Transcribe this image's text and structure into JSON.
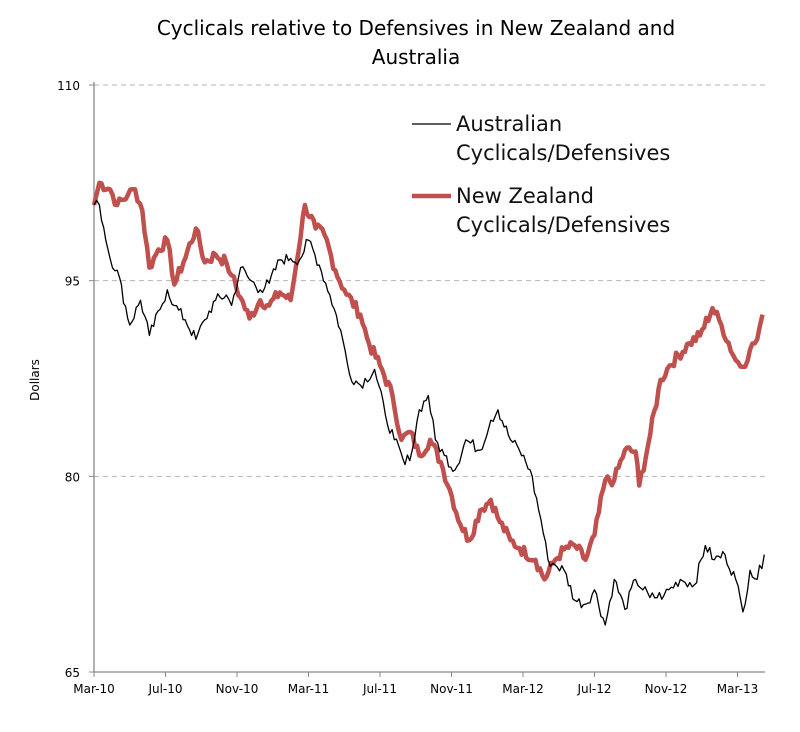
{
  "chart_data": {
    "type": "line",
    "title_lines": [
      "Cyclicals relative to  Defensives in New Zealand and",
      "Australia"
    ],
    "xlabel": "",
    "ylabel": "Dollars",
    "ylim": [
      65,
      110
    ],
    "yticks": [
      65,
      80,
      95,
      110
    ],
    "x_unit": "months since Mar-10",
    "xlim": [
      0,
      37.6
    ],
    "xticks": [
      {
        "label": "Mar-10",
        "x": 0
      },
      {
        "label": "Jul-10",
        "x": 4
      },
      {
        "label": "Nov-10",
        "x": 8
      },
      {
        "label": "Mar-11",
        "x": 12
      },
      {
        "label": "Jul-11",
        "x": 16
      },
      {
        "label": "Nov-11",
        "x": 20
      },
      {
        "label": "Mar-12",
        "x": 24
      },
      {
        "label": "Jul-12",
        "x": 28
      },
      {
        "label": "Nov-12",
        "x": 32
      },
      {
        "label": "Mar-13",
        "x": 36
      }
    ],
    "grid": "horizontal dashed",
    "legend_position": "top-right",
    "series": [
      {
        "name": "Australian Cyclicals/Defensives",
        "legend_lines": [
          "Australian",
          "Cyclicals/Defensives"
        ],
        "color": "#000000",
        "points": [
          [
            0,
            100.8
          ],
          [
            0.3,
            100.8
          ],
          [
            0.9,
            96.7
          ],
          [
            1.3,
            95.8
          ],
          [
            2.0,
            91.6
          ],
          [
            2.6,
            93.5
          ],
          [
            3.1,
            90.8
          ],
          [
            3.7,
            92.8
          ],
          [
            4.1,
            94.3
          ],
          [
            4.5,
            93.1
          ],
          [
            5.1,
            92.0
          ],
          [
            5.7,
            90.5
          ],
          [
            6.2,
            92.0
          ],
          [
            6.8,
            93.5
          ],
          [
            7.4,
            93.9
          ],
          [
            7.7,
            93.1
          ],
          [
            8.2,
            96.0
          ],
          [
            8.7,
            95.1
          ],
          [
            9.3,
            94.3
          ],
          [
            9.8,
            94.8
          ],
          [
            10.4,
            96.6
          ],
          [
            11.0,
            96.7
          ],
          [
            11.5,
            96.6
          ],
          [
            12.0,
            98.1
          ],
          [
            12.6,
            96.2
          ],
          [
            13.2,
            93.9
          ],
          [
            13.8,
            91.2
          ],
          [
            14.3,
            87.8
          ],
          [
            14.9,
            87.0
          ],
          [
            15.7,
            88.2
          ],
          [
            16.3,
            84.7
          ],
          [
            16.8,
            82.8
          ],
          [
            17.4,
            80.9
          ],
          [
            17.8,
            82.0
          ],
          [
            18.2,
            85.1
          ],
          [
            18.7,
            86.2
          ],
          [
            19.1,
            82.8
          ],
          [
            19.6,
            81.6
          ],
          [
            20.2,
            80.5
          ],
          [
            20.8,
            82.8
          ],
          [
            21.6,
            82.0
          ],
          [
            22.2,
            84.3
          ],
          [
            22.6,
            85.1
          ],
          [
            23.3,
            82.8
          ],
          [
            23.8,
            82.0
          ],
          [
            24.4,
            80.5
          ],
          [
            25.0,
            76.7
          ],
          [
            25.4,
            73.6
          ],
          [
            25.8,
            73.2
          ],
          [
            26.3,
            72.8
          ],
          [
            26.9,
            70.5
          ],
          [
            27.5,
            70.2
          ],
          [
            28.0,
            71.3
          ],
          [
            28.6,
            68.6
          ],
          [
            29.1,
            72.1
          ],
          [
            29.7,
            69.8
          ],
          [
            30.3,
            72.1
          ],
          [
            31.1,
            70.7
          ],
          [
            31.9,
            70.9
          ],
          [
            32.8,
            72.1
          ],
          [
            33.6,
            71.7
          ],
          [
            34.2,
            74.7
          ],
          [
            34.7,
            73.6
          ],
          [
            35.3,
            74.0
          ],
          [
            35.9,
            72.1
          ],
          [
            36.3,
            69.6
          ],
          [
            36.7,
            72.8
          ],
          [
            37.1,
            72.1
          ],
          [
            37.5,
            74.0
          ]
        ]
      },
      {
        "name": "New Zealand Cyclicals/Defensives",
        "legend_lines": [
          "New Zealand",
          "Cyclicals/Defensives"
        ],
        "color": "#c0504d",
        "points": [
          [
            0,
            100.8
          ],
          [
            0.3,
            102.5
          ],
          [
            0.9,
            102.0
          ],
          [
            1.3,
            100.8
          ],
          [
            1.9,
            101.6
          ],
          [
            2.3,
            102.0
          ],
          [
            2.7,
            100.4
          ],
          [
            3.1,
            96.0
          ],
          [
            3.6,
            97.4
          ],
          [
            4.1,
            98.1
          ],
          [
            4.5,
            94.7
          ],
          [
            5.0,
            96.4
          ],
          [
            5.7,
            99.0
          ],
          [
            6.2,
            96.4
          ],
          [
            6.8,
            97.0
          ],
          [
            7.4,
            96.4
          ],
          [
            7.7,
            95.4
          ],
          [
            8.2,
            93.7
          ],
          [
            8.7,
            92.1
          ],
          [
            9.3,
            93.5
          ],
          [
            9.8,
            93.1
          ],
          [
            10.4,
            94.1
          ],
          [
            11.0,
            93.5
          ],
          [
            11.2,
            95.2
          ],
          [
            11.8,
            100.8
          ],
          [
            12.4,
            99.0
          ],
          [
            12.9,
            98.5
          ],
          [
            13.5,
            95.8
          ],
          [
            14.0,
            94.3
          ],
          [
            14.9,
            92.4
          ],
          [
            15.4,
            90.1
          ],
          [
            16.0,
            88.5
          ],
          [
            16.7,
            86.2
          ],
          [
            17.2,
            82.8
          ],
          [
            17.7,
            83.4
          ],
          [
            18.2,
            81.6
          ],
          [
            18.8,
            82.8
          ],
          [
            19.4,
            81.1
          ],
          [
            19.9,
            79.0
          ],
          [
            20.5,
            76.3
          ],
          [
            21.0,
            75.1
          ],
          [
            21.6,
            77.4
          ],
          [
            22.2,
            78.2
          ],
          [
            22.7,
            76.5
          ],
          [
            23.3,
            75.1
          ],
          [
            23.8,
            74.5
          ],
          [
            24.7,
            73.6
          ],
          [
            25.2,
            72.1
          ],
          [
            25.8,
            73.6
          ],
          [
            26.3,
            74.4
          ],
          [
            26.9,
            74.7
          ],
          [
            27.5,
            73.6
          ],
          [
            28.0,
            75.5
          ],
          [
            28.6,
            79.7
          ],
          [
            29.1,
            79.7
          ],
          [
            29.7,
            82.0
          ],
          [
            30.3,
            81.9
          ],
          [
            30.5,
            79.3
          ],
          [
            31.0,
            82.4
          ],
          [
            31.7,
            87.4
          ],
          [
            32.2,
            88.5
          ],
          [
            33.3,
            90.2
          ],
          [
            33.9,
            90.8
          ],
          [
            34.6,
            92.9
          ],
          [
            35.1,
            91.6
          ],
          [
            35.9,
            88.9
          ],
          [
            36.3,
            88.4
          ],
          [
            36.7,
            89.7
          ],
          [
            37.1,
            90.5
          ],
          [
            37.4,
            92.4
          ]
        ]
      }
    ]
  }
}
